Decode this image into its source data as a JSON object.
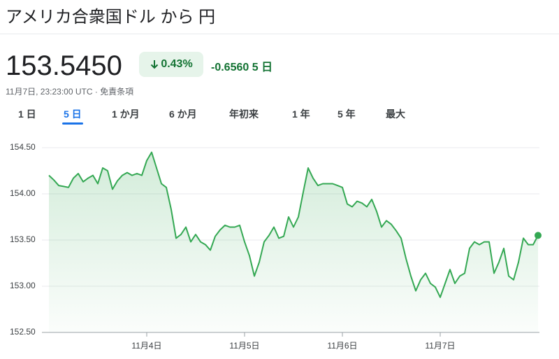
{
  "header": {
    "title": "アメリカ合衆国ドル から 円",
    "price": "153.5450",
    "change_percent": "0.43%",
    "change": "-0.6560",
    "period": "5 日",
    "timestamp": "11月7日, 23:23:00 UTC · 免責条項"
  },
  "tabs": [
    "1 日",
    "5 日",
    "1 か月",
    "6 か月",
    "年初来",
    "1 年",
    "5 年",
    "最大"
  ],
  "selected_tab": 1,
  "chart_data": {
    "type": "line",
    "categories": [
      null,
      null,
      null,
      null,
      null,
      null,
      null,
      null,
      null,
      null,
      null,
      null,
      null,
      null,
      null,
      null,
      null,
      null,
      null,
      null,
      "11月4日",
      null,
      null,
      null,
      null,
      null,
      null,
      null,
      null,
      null,
      null,
      null,
      null,
      null,
      null,
      null,
      null,
      null,
      null,
      null,
      "11月5日",
      null,
      null,
      null,
      null,
      null,
      null,
      null,
      null,
      null,
      null,
      null,
      null,
      null,
      null,
      null,
      null,
      null,
      null,
      null,
      "11月6日",
      null,
      null,
      null,
      null,
      null,
      null,
      null,
      null,
      null,
      null,
      null,
      null,
      null,
      null,
      null,
      null,
      null,
      null,
      null,
      "11月7日",
      null,
      null,
      null,
      null,
      null,
      null,
      null,
      null,
      null,
      null,
      null,
      null,
      null,
      null,
      null,
      null,
      null,
      null,
      null,
      null
    ],
    "series": [
      {
        "color": "#34a853",
        "values": [
          154.2,
          154.15,
          154.09,
          154.08,
          154.07,
          154.17,
          154.22,
          154.13,
          154.17,
          154.2,
          154.11,
          154.28,
          154.25,
          154.05,
          154.14,
          154.2,
          154.23,
          154.2,
          154.22,
          154.2,
          154.36,
          154.45,
          154.28,
          154.11,
          154.07,
          153.83,
          153.52,
          153.56,
          153.64,
          153.48,
          153.56,
          153.48,
          153.45,
          153.39,
          153.54,
          153.61,
          153.66,
          153.64,
          153.64,
          153.66,
          153.48,
          153.33,
          153.11,
          153.26,
          153.48,
          153.55,
          153.64,
          153.52,
          153.54,
          153.75,
          153.64,
          153.75,
          154.02,
          154.28,
          154.17,
          154.09,
          154.11,
          154.11,
          154.11,
          154.09,
          154.07,
          153.89,
          153.86,
          153.92,
          153.9,
          153.86,
          153.94,
          153.81,
          153.64,
          153.71,
          153.67,
          153.6,
          153.52,
          153.3,
          153.11,
          152.95,
          153.07,
          153.14,
          153.03,
          152.99,
          152.88,
          153.03,
          153.18,
          153.03,
          153.11,
          153.14,
          153.41,
          153.48,
          153.45,
          153.48,
          153.48,
          153.14,
          153.26,
          153.41,
          153.11,
          153.07,
          153.26,
          153.52,
          153.45,
          153.45,
          153.55
        ]
      }
    ],
    "ylim": [
      152.5,
      154.5
    ],
    "yticks": [
      {
        "value": 152.5,
        "label": "152.50"
      },
      {
        "value": 153,
        "label": "153.00"
      },
      {
        "value": 153.5,
        "label": "153.50"
      },
      {
        "value": 154,
        "label": "154.00"
      },
      {
        "value": 154.5,
        "label": "154.50"
      }
    ],
    "grid": true
  }
}
